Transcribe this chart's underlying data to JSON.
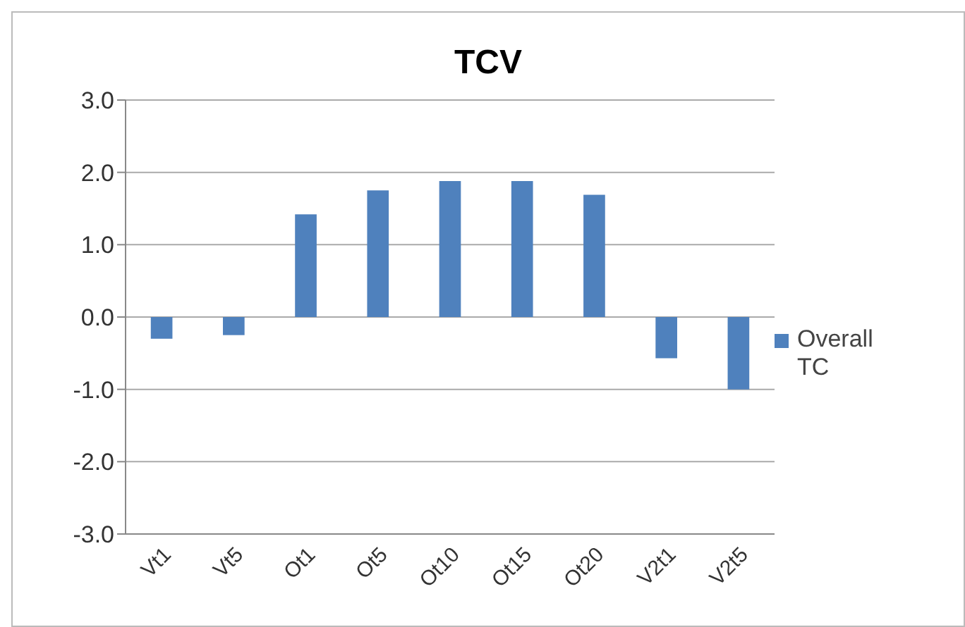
{
  "chart_data": {
    "type": "bar",
    "title": "TCV",
    "categories": [
      "Vt1",
      "Vt5",
      "Ot1",
      "Ot5",
      "Ot10",
      "Ot15",
      "Ot20",
      "V2t1",
      "V2t5"
    ],
    "series": [
      {
        "name": "Overall TC",
        "color": "#4f81bd",
        "values": [
          -0.3,
          -0.25,
          1.42,
          1.75,
          1.88,
          1.88,
          1.69,
          -0.57,
          -1.0
        ]
      }
    ],
    "ylim": [
      -3,
      3
    ],
    "yticks": [
      {
        "value": -3,
        "label": "-3.0"
      },
      {
        "value": -2,
        "label": "-2.0"
      },
      {
        "value": -1,
        "label": "-1.0"
      },
      {
        "value": 0,
        "label": "0.0"
      },
      {
        "value": 1,
        "label": "1.0"
      },
      {
        "value": 2,
        "label": "2.0"
      },
      {
        "value": 3,
        "label": "3.0"
      }
    ],
    "grid": "y",
    "legend": "right"
  }
}
